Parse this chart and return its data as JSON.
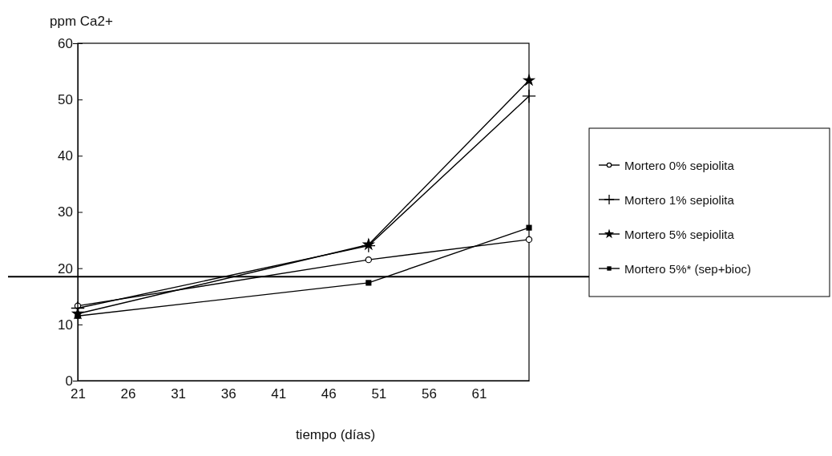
{
  "chart_data": {
    "type": "line",
    "xlabel": "tiempo (días)",
    "ylabel": "ppm Ca2+",
    "x": [
      21,
      50,
      66
    ],
    "series": [
      {
        "name": "Mortero 0% sepiolita",
        "color": "#000000",
        "marker": "circle",
        "values": [
          13.3,
          21.5,
          25.1
        ]
      },
      {
        "name": "Mortero 1% sepiolita",
        "color": "#000000",
        "marker": "cross",
        "values": [
          12.9,
          24.0,
          50.6
        ]
      },
      {
        "name": "Mortero 5% sepiolita",
        "color": "#000000",
        "marker": "star",
        "values": [
          11.9,
          24.2,
          53.4
        ]
      },
      {
        "name": "Mortero 5%* (sep+bioc)",
        "color": "#000000",
        "marker": "square",
        "values": [
          11.5,
          17.4,
          27.2
        ]
      }
    ],
    "xlim": [
      21,
      66
    ],
    "xticks": [
      21,
      26,
      31,
      36,
      41,
      46,
      51,
      56,
      61
    ],
    "ylim": [
      0,
      60
    ],
    "yticks": [
      0,
      10,
      20,
      30,
      40,
      50,
      60
    ],
    "ref_lines": [
      {
        "axis": "y",
        "value": 18.5,
        "color": "#000000"
      }
    ],
    "grid": false,
    "legend": "right",
    "line_style": "solid"
  }
}
